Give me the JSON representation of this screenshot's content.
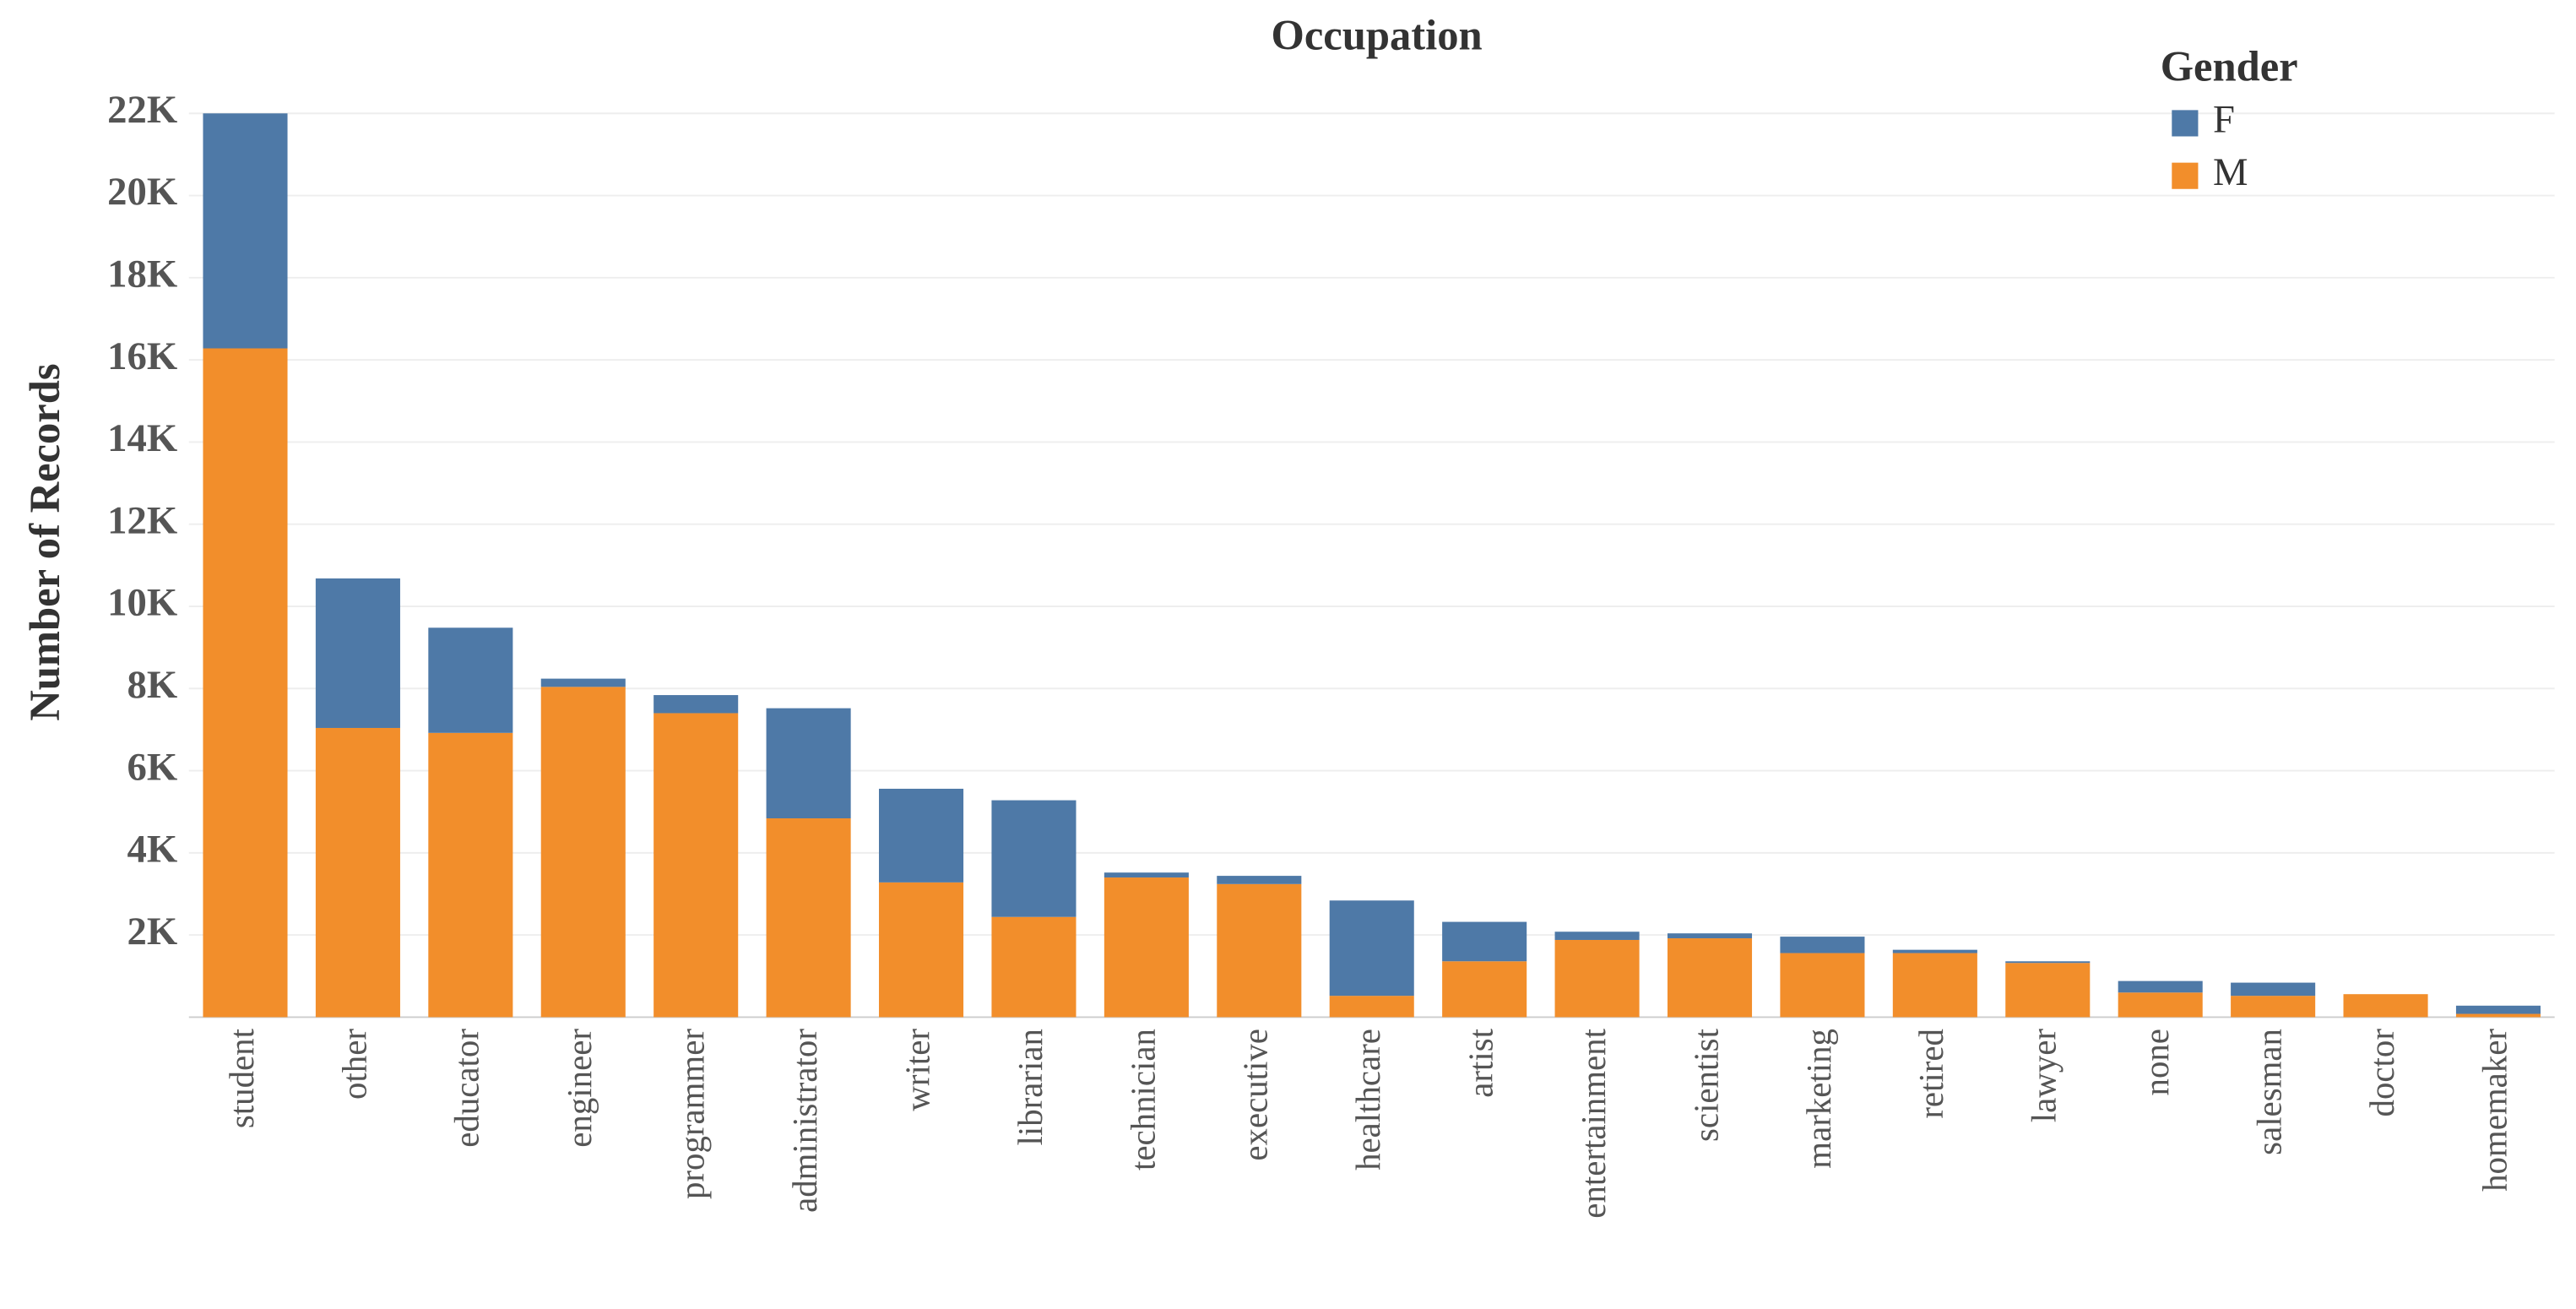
{
  "chart_data": {
    "type": "stacked_bar",
    "title": "Occupation",
    "y_label": "Number of Records",
    "categories": [
      "student",
      "other",
      "educator",
      "engineer",
      "programmer",
      "administrator",
      "writer",
      "librarian",
      "technician",
      "executive",
      "healthcare",
      "artist",
      "entertainment",
      "scientist",
      "marketing",
      "retired",
      "lawyer",
      "none",
      "salesman",
      "doctor",
      "homemaker"
    ],
    "legend_title": "Gender",
    "series": [
      {
        "name": "F",
        "color": "#4e79a7",
        "values": [
          5720,
          3640,
          2560,
          200,
          440,
          2680,
          2280,
          2840,
          120,
          200,
          2320,
          960,
          200,
          120,
          400,
          80,
          40,
          280,
          320,
          0,
          200
        ]
      },
      {
        "name": "M",
        "color": "#f28e2b",
        "values": [
          16280,
          7040,
          6920,
          8040,
          7400,
          4840,
          3280,
          2440,
          3400,
          3240,
          520,
          1360,
          1880,
          1920,
          1560,
          1560,
          1320,
          600,
          520,
          560,
          80
        ]
      }
    ],
    "ylim": [
      0,
      23000
    ],
    "yticks": [
      {
        "value": 2000,
        "label": "2K"
      },
      {
        "value": 4000,
        "label": "4K"
      },
      {
        "value": 6000,
        "label": "6K"
      },
      {
        "value": 8000,
        "label": "8K"
      },
      {
        "value": 10000,
        "label": "10K"
      },
      {
        "value": 12000,
        "label": "12K"
      },
      {
        "value": 14000,
        "label": "14K"
      },
      {
        "value": 16000,
        "label": "16K"
      },
      {
        "value": 18000,
        "label": "18K"
      },
      {
        "value": 20000,
        "label": "20K"
      },
      {
        "value": 22000,
        "label": "22K"
      }
    ],
    "grid": true,
    "legend_position": "top-right"
  }
}
